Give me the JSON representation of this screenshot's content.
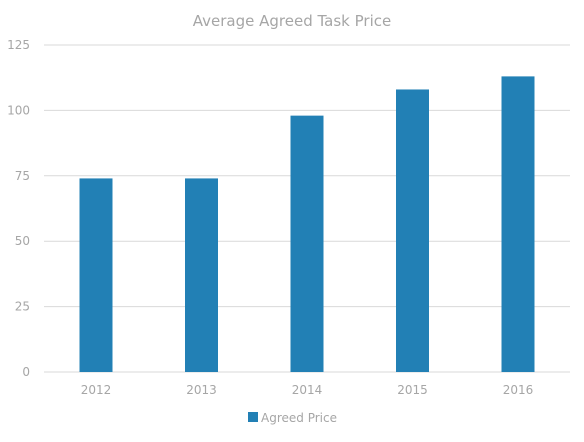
{
  "chart_data": {
    "type": "bar",
    "title": "Average Agreed Task Price",
    "xlabel": "",
    "ylabel": "",
    "categories": [
      "2012",
      "2013",
      "2014",
      "2015",
      "2016"
    ],
    "series": [
      {
        "name": "Agreed Price",
        "values": [
          74,
          74,
          98,
          108,
          113
        ],
        "color": "#2280b5"
      }
    ],
    "ylim": [
      0,
      125
    ],
    "yticks": [
      0,
      25,
      50,
      75,
      100,
      125
    ],
    "grid": true,
    "legend_position": "bottom"
  },
  "colors": {
    "bar": "#2280b5",
    "grid": "#d9d9d9",
    "axis_text": "#a6a6a6",
    "title_text": "#a6a6a6"
  }
}
